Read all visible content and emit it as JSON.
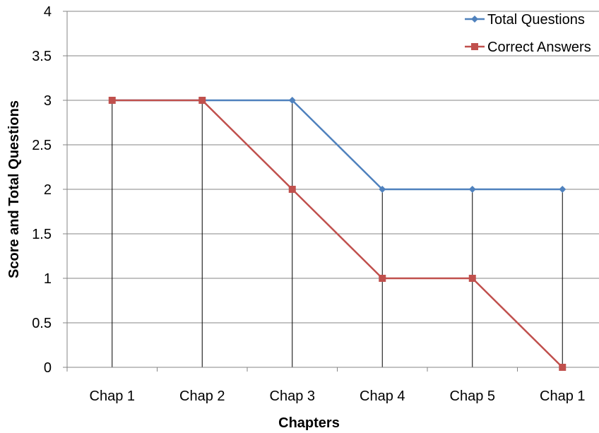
{
  "chart_data": {
    "type": "line",
    "categories": [
      "Chap 1",
      "Chap 2",
      "Chap 3",
      "Chap 4",
      "Chap 5",
      "Chap 1"
    ],
    "series": [
      {
        "name": "Total Questions",
        "values": [
          3,
          3,
          3,
          2,
          2,
          2
        ],
        "color": "#4f81bd",
        "marker": "diamond"
      },
      {
        "name": "Correct Answers",
        "values": [
          3,
          3,
          2,
          1,
          1,
          0
        ],
        "color": "#c0504d",
        "marker": "square"
      }
    ],
    "xlabel": "Chapters",
    "ylabel": "Score and Total Questions",
    "ylim": [
      0,
      4
    ],
    "yticks": [
      "0",
      "0.5",
      "1",
      "1.5",
      "2",
      "2.5",
      "3",
      "3.5",
      "4"
    ],
    "grid": true,
    "legend": "top-right",
    "drop_lines": true
  }
}
